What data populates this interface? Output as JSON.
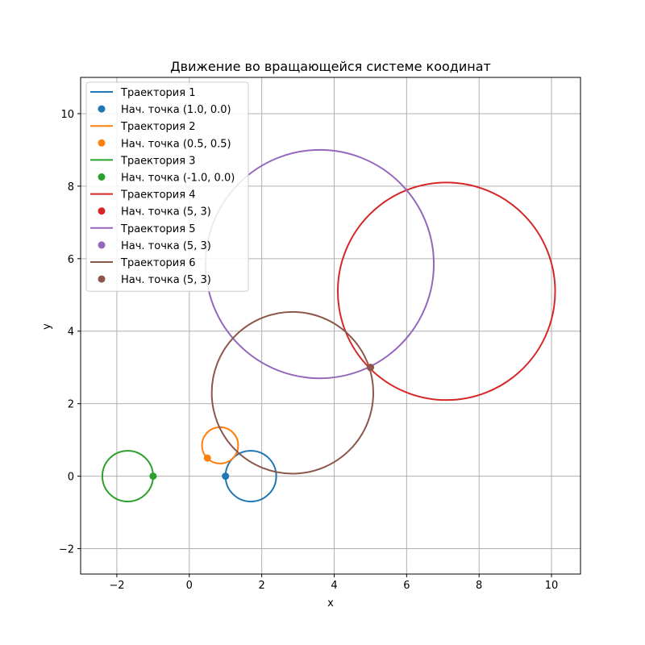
{
  "chart_data": {
    "type": "line",
    "title": "Движение во вращающейся системе коодинат",
    "xlabel": "x",
    "ylabel": "y",
    "xlim": [
      -3.0,
      10.8
    ],
    "ylim": [
      -2.7,
      11.0
    ],
    "xticks": [
      -2,
      0,
      2,
      4,
      6,
      8,
      10
    ],
    "yticks": [
      -2,
      0,
      2,
      4,
      6,
      8,
      10
    ],
    "xtick_labels": [
      "−2",
      "0",
      "2",
      "4",
      "6",
      "8",
      "10"
    ],
    "ytick_labels": [
      "−2",
      "0",
      "2",
      "4",
      "6",
      "8",
      "10"
    ],
    "grid": true,
    "legend_position": "upper-left",
    "series": [
      {
        "name": "Траектория 1",
        "color": "#1f77b4",
        "trajectory": {
          "shape": "circle",
          "center": [
            1.7,
            0.0
          ],
          "radius": 0.7
        },
        "start_label": "Нач. точка (1.0, 0.0)",
        "start": [
          1.0,
          0.0
        ]
      },
      {
        "name": "Траектория 2",
        "color": "#ff7f0e",
        "trajectory": {
          "shape": "circle",
          "center": [
            0.85,
            0.85
          ],
          "radius": 0.5
        },
        "start_label": "Нач. точка (0.5, 0.5)",
        "start": [
          0.5,
          0.5
        ]
      },
      {
        "name": "Траектория 3",
        "color": "#2ca02c",
        "trajectory": {
          "shape": "circle",
          "center": [
            -1.7,
            0.0
          ],
          "radius": 0.7
        },
        "start_label": "Нач. точка (-1.0, 0.0)",
        "start": [
          -1.0,
          0.0
        ]
      },
      {
        "name": "Траектория 4",
        "color": "#d62728",
        "trajectory": {
          "shape": "circle",
          "center": [
            7.1,
            5.1
          ],
          "radius": 3.0
        },
        "start_label": "Нач. точка (5, 3)",
        "start": [
          5.0,
          3.0
        ]
      },
      {
        "name": "Траектория 5",
        "color": "#9467bd",
        "trajectory": {
          "shape": "circle",
          "center": [
            3.6,
            5.85
          ],
          "radius": 3.15
        },
        "start_label": "Нач. точка (5, 3)",
        "start": [
          5.0,
          3.0
        ]
      },
      {
        "name": "Траектория 6",
        "color": "#8c564b",
        "trajectory": {
          "shape": "circle",
          "center": [
            2.85,
            2.3
          ],
          "radius": 2.23
        },
        "start_label": "Нач. точка (5, 3)",
        "start": [
          5.0,
          3.0
        ]
      }
    ]
  }
}
